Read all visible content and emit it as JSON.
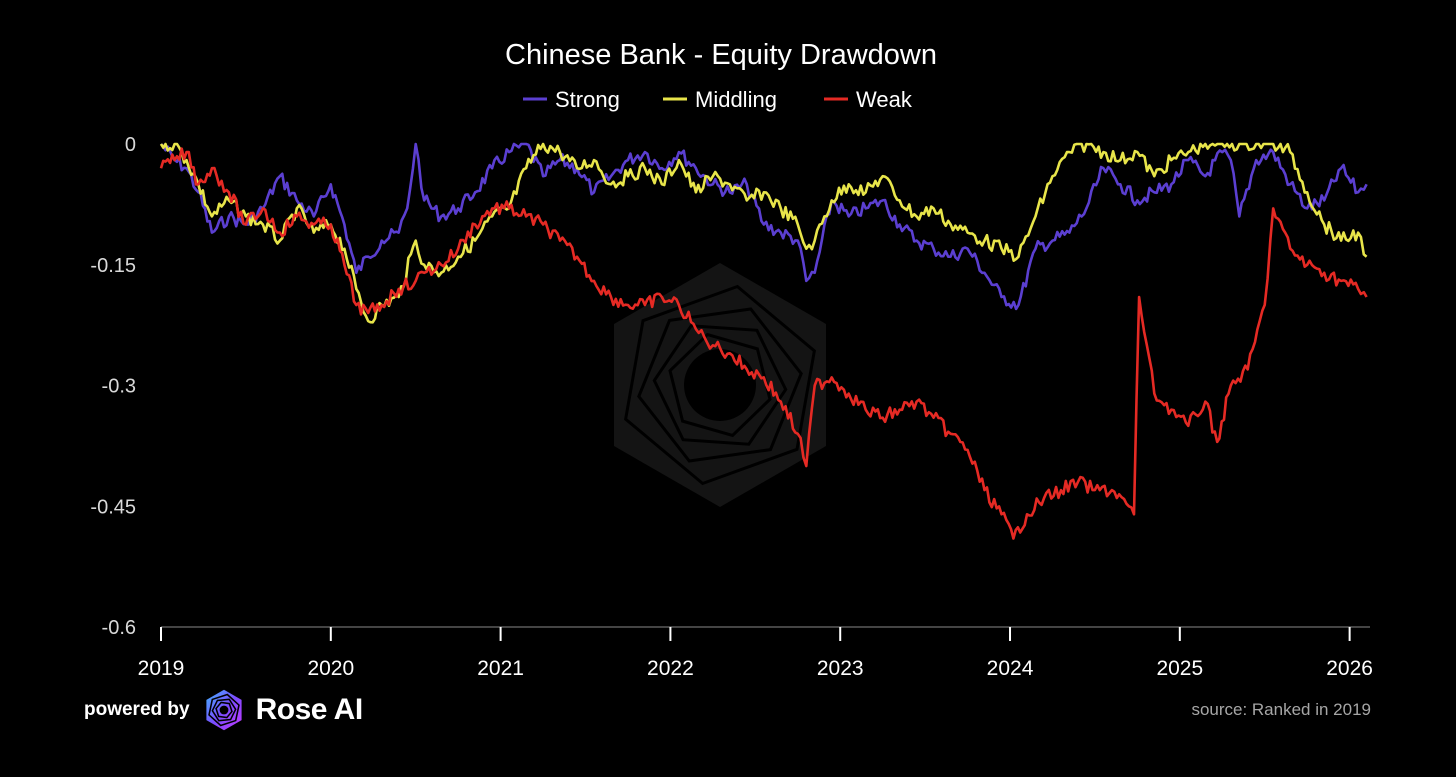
{
  "chart_data": {
    "type": "line",
    "title": "Chinese Bank - Equity Drawdown",
    "xlabel": "",
    "ylabel": "",
    "ylim": [
      -0.6,
      0
    ],
    "xlim": [
      2019.0,
      2026.12
    ],
    "y_ticks": [
      0,
      -0.15,
      -0.3,
      -0.45,
      -0.6
    ],
    "y_tick_labels": [
      "0",
      "-0.15",
      "-0.3",
      "-0.45",
      "-0.6"
    ],
    "x_ticks": [
      2019,
      2020,
      2021,
      2022,
      2023,
      2024,
      2025,
      2026
    ],
    "x_tick_labels": [
      "2019",
      "2020",
      "2021",
      "2022",
      "2023",
      "2024",
      "2025",
      "2026"
    ],
    "grid": false,
    "legend_position": "top-center",
    "series": [
      {
        "name": "Strong",
        "color": "#5b3fd1",
        "x": [
          2019.0,
          2019.08,
          2019.15,
          2019.22,
          2019.3,
          2019.4,
          2019.5,
          2019.6,
          2019.7,
          2019.8,
          2019.9,
          2020.0,
          2020.08,
          2020.15,
          2020.22,
          2020.3,
          2020.4,
          2020.45,
          2020.5,
          2020.55,
          2020.65,
          2020.75,
          2020.85,
          2020.95,
          2021.05,
          2021.15,
          2021.25,
          2021.35,
          2021.45,
          2021.55,
          2021.65,
          2021.75,
          2021.85,
          2021.95,
          2022.05,
          2022.15,
          2022.25,
          2022.35,
          2022.45,
          2022.55,
          2022.65,
          2022.75,
          2022.8,
          2022.85,
          2022.95,
          2023.05,
          2023.15,
          2023.25,
          2023.35,
          2023.45,
          2023.55,
          2023.65,
          2023.75,
          2023.85,
          2023.95,
          2024.05,
          2024.15,
          2024.25,
          2024.35,
          2024.45,
          2024.55,
          2024.65,
          2024.75,
          2024.85,
          2024.95,
          2025.05,
          2025.15,
          2025.25,
          2025.3,
          2025.35,
          2025.45,
          2025.55,
          2025.65,
          2025.75,
          2025.85,
          2025.95,
          2026.05,
          2026.1
        ],
        "y": [
          0,
          -0.02,
          -0.03,
          -0.06,
          -0.11,
          -0.09,
          -0.1,
          -0.08,
          -0.04,
          -0.07,
          -0.09,
          -0.05,
          -0.1,
          -0.16,
          -0.14,
          -0.12,
          -0.11,
          -0.08,
          0,
          -0.07,
          -0.09,
          -0.08,
          -0.06,
          -0.03,
          -0.01,
          0,
          -0.04,
          -0.02,
          -0.03,
          -0.06,
          -0.04,
          -0.02,
          -0.01,
          -0.03,
          -0.01,
          -0.03,
          -0.05,
          -0.06,
          -0.05,
          -0.1,
          -0.11,
          -0.12,
          -0.17,
          -0.16,
          -0.07,
          -0.09,
          -0.08,
          -0.07,
          -0.1,
          -0.12,
          -0.13,
          -0.14,
          -0.13,
          -0.16,
          -0.19,
          -0.2,
          -0.13,
          -0.12,
          -0.11,
          -0.08,
          -0.03,
          -0.05,
          -0.07,
          -0.06,
          -0.05,
          -0.02,
          -0.04,
          -0.01,
          -0.02,
          -0.09,
          -0.02,
          -0.01,
          -0.05,
          -0.08,
          -0.07,
          -0.03,
          -0.06,
          -0.05
        ]
      },
      {
        "name": "Middling",
        "color": "#e8e54a",
        "x": [
          2019.0,
          2019.08,
          2019.15,
          2019.22,
          2019.3,
          2019.4,
          2019.5,
          2019.6,
          2019.7,
          2019.8,
          2019.9,
          2020.0,
          2020.08,
          2020.15,
          2020.22,
          2020.3,
          2020.4,
          2020.5,
          2020.55,
          2020.65,
          2020.75,
          2020.85,
          2020.95,
          2021.05,
          2021.15,
          2021.25,
          2021.35,
          2021.45,
          2021.55,
          2021.65,
          2021.75,
          2021.85,
          2021.95,
          2022.05,
          2022.15,
          2022.25,
          2022.35,
          2022.45,
          2022.55,
          2022.65,
          2022.75,
          2022.8,
          2022.85,
          2022.95,
          2023.05,
          2023.15,
          2023.25,
          2023.35,
          2023.45,
          2023.55,
          2023.65,
          2023.75,
          2023.85,
          2023.95,
          2024.05,
          2024.15,
          2024.25,
          2024.35,
          2024.45,
          2024.55,
          2024.65,
          2024.75,
          2024.85,
          2024.95,
          2025.05,
          2025.15,
          2025.25,
          2025.35,
          2025.45,
          2025.55,
          2025.65,
          2025.75,
          2025.85,
          2025.95,
          2026.05,
          2026.1
        ],
        "y": [
          0,
          0,
          -0.02,
          -0.05,
          -0.09,
          -0.07,
          -0.09,
          -0.1,
          -0.12,
          -0.08,
          -0.11,
          -0.1,
          -0.13,
          -0.18,
          -0.22,
          -0.2,
          -0.19,
          -0.12,
          -0.15,
          -0.16,
          -0.14,
          -0.12,
          -0.09,
          -0.08,
          -0.03,
          0,
          -0.01,
          -0.03,
          -0.02,
          -0.05,
          -0.04,
          -0.03,
          -0.05,
          -0.02,
          -0.06,
          -0.04,
          -0.05,
          -0.07,
          -0.06,
          -0.08,
          -0.1,
          -0.13,
          -0.12,
          -0.07,
          -0.05,
          -0.06,
          -0.04,
          -0.07,
          -0.09,
          -0.08,
          -0.1,
          -0.11,
          -0.12,
          -0.13,
          -0.14,
          -0.09,
          -0.04,
          -0.01,
          0,
          -0.01,
          -0.02,
          -0.01,
          -0.04,
          -0.02,
          -0.01,
          0,
          0,
          0,
          0,
          0,
          -0.01,
          -0.06,
          -0.1,
          -0.12,
          -0.11,
          -0.14
        ]
      },
      {
        "name": "Weak",
        "color": "#e52a24",
        "x": [
          2019.0,
          2019.08,
          2019.15,
          2019.22,
          2019.3,
          2019.4,
          2019.5,
          2019.6,
          2019.7,
          2019.8,
          2019.9,
          2020.0,
          2020.08,
          2020.15,
          2020.22,
          2020.3,
          2020.4,
          2020.5,
          2020.55,
          2020.65,
          2020.75,
          2020.85,
          2020.95,
          2021.05,
          2021.15,
          2021.25,
          2021.35,
          2021.45,
          2021.55,
          2021.65,
          2021.75,
          2021.85,
          2021.95,
          2022.05,
          2022.15,
          2022.2,
          2022.25,
          2022.35,
          2022.45,
          2022.55,
          2022.65,
          2022.75,
          2022.8,
          2022.85,
          2022.95,
          2023.05,
          2023.15,
          2023.25,
          2023.35,
          2023.45,
          2023.55,
          2023.65,
          2023.75,
          2023.85,
          2023.95,
          2024.02,
          2024.1,
          2024.2,
          2024.3,
          2024.4,
          2024.5,
          2024.6,
          2024.7,
          2024.73,
          2024.76,
          2024.85,
          2024.95,
          2025.05,
          2025.15,
          2025.22,
          2025.3,
          2025.4,
          2025.5,
          2025.55,
          2025.65,
          2025.75,
          2025.85,
          2025.95,
          2026.05,
          2026.1
        ],
        "y": [
          -0.03,
          -0.02,
          -0.01,
          -0.05,
          -0.03,
          -0.06,
          -0.1,
          -0.08,
          -0.11,
          -0.09,
          -0.1,
          -0.1,
          -0.15,
          -0.2,
          -0.21,
          -0.2,
          -0.18,
          -0.17,
          -0.16,
          -0.15,
          -0.13,
          -0.1,
          -0.08,
          -0.08,
          -0.09,
          -0.1,
          -0.12,
          -0.14,
          -0.17,
          -0.19,
          -0.2,
          -0.2,
          -0.19,
          -0.2,
          -0.23,
          -0.24,
          -0.25,
          -0.26,
          -0.28,
          -0.29,
          -0.32,
          -0.36,
          -0.4,
          -0.3,
          -0.29,
          -0.31,
          -0.33,
          -0.34,
          -0.33,
          -0.32,
          -0.34,
          -0.36,
          -0.38,
          -0.43,
          -0.46,
          -0.49,
          -0.46,
          -0.44,
          -0.43,
          -0.42,
          -0.43,
          -0.43,
          -0.45,
          -0.46,
          -0.19,
          -0.31,
          -0.33,
          -0.35,
          -0.32,
          -0.37,
          -0.3,
          -0.28,
          -0.2,
          -0.08,
          -0.13,
          -0.15,
          -0.16,
          -0.17,
          -0.18,
          -0.19
        ]
      }
    ]
  },
  "footer": {
    "powered_by": "powered by",
    "brand_name": "Rose AI",
    "source": "source: Ranked in 2019"
  }
}
